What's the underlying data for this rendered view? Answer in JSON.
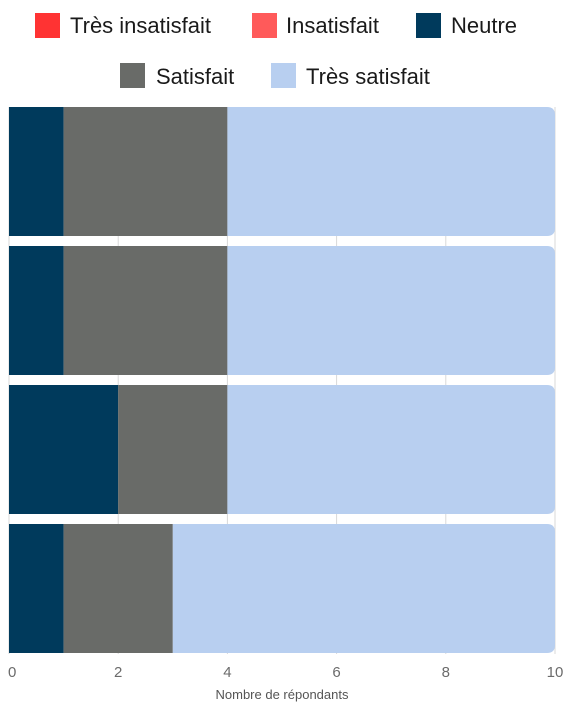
{
  "chart_data": {
    "type": "bar",
    "orientation": "horizontal",
    "stacked": true,
    "categories": [
      "",
      "",
      "",
      ""
    ],
    "series": [
      {
        "name": "Très insatisfait",
        "color": "#ff3333",
        "values": [
          0,
          0,
          0,
          0
        ]
      },
      {
        "name": "Insatisfait",
        "color": "#ff5a5a",
        "values": [
          0,
          0,
          0,
          0
        ]
      },
      {
        "name": "Neutre",
        "color": "#003a5c",
        "values": [
          1,
          1,
          2,
          1
        ]
      },
      {
        "name": "Satisfait",
        "color": "#696b68",
        "values": [
          3,
          3,
          2,
          2
        ]
      },
      {
        "name": "Très satisfait",
        "color": "#b8cff0",
        "values": [
          6,
          6,
          6,
          7
        ]
      }
    ],
    "xlabel": "Nombre de répondants",
    "ylabel": "",
    "xlim": [
      0,
      10
    ],
    "xticks": [
      "0",
      "2",
      "4",
      "6",
      "8",
      "10"
    ],
    "grid": "vertical",
    "legend_position": "top"
  }
}
